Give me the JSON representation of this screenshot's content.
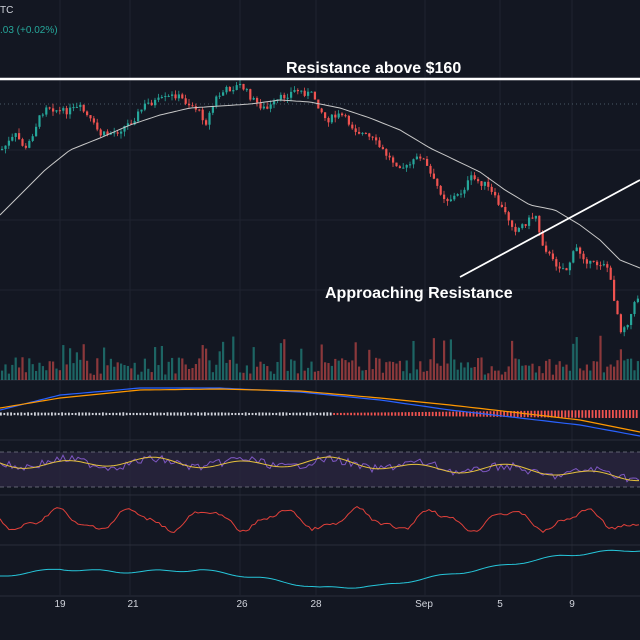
{
  "header": {
    "symbol_fragment": "TC",
    "change_text": ".03 (+0.02%)"
  },
  "colors": {
    "background": "#131722",
    "up": "#26a69a",
    "down": "#ef5350",
    "grid": "#1f2330",
    "ma_line": "#c8c8c8",
    "macd_blue": "#2962ff",
    "macd_orange": "#ff9800",
    "rsi_line": "#7e57c2",
    "rsi_ma": "#e6c13c",
    "rsi_band": "#2a2540",
    "osc_red": "#e0403a",
    "osc_cyan": "#26c6da"
  },
  "chart_data": {
    "type": "candlestick",
    "annotations": [
      {
        "text": "Resistance above $160"
      },
      {
        "text": "Approaching Resistance"
      }
    ],
    "x_tick_labels": [
      "19",
      "21",
      "26",
      "28",
      "Sep",
      "5",
      "9"
    ],
    "panes": [
      "price",
      "volume",
      "macd",
      "rsi",
      "oscillator",
      "trend"
    ]
  }
}
